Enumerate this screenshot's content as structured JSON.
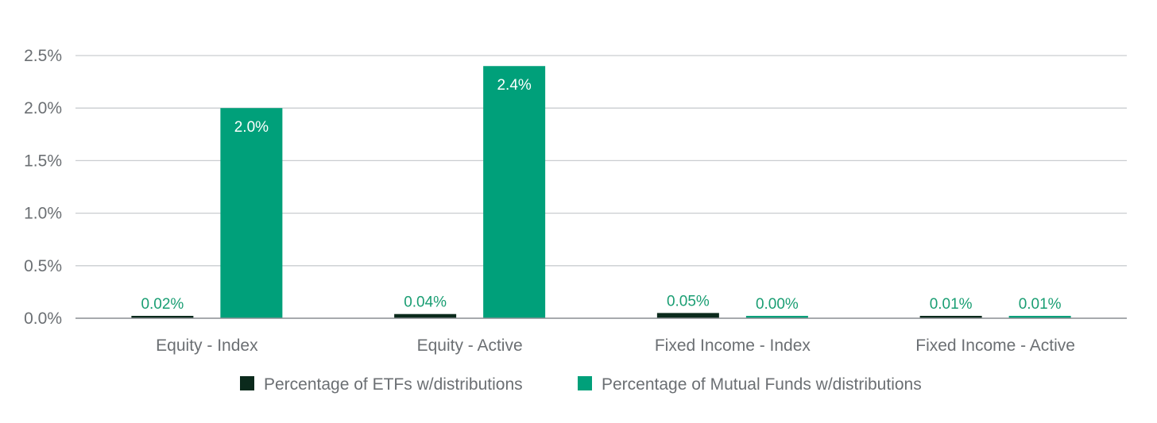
{
  "chart_data": {
    "type": "bar",
    "title": "",
    "xlabel": "",
    "ylabel": "",
    "categories": [
      "Equity - Index",
      "Equity - Active",
      "Fixed Income - Index",
      "Fixed Income - Active"
    ],
    "ylim": [
      0,
      2.5
    ],
    "yticks": [
      0.0,
      0.5,
      1.0,
      1.5,
      2.0,
      2.5
    ],
    "ytick_labels": [
      "0.0%",
      "0.5%",
      "1.0%",
      "1.5%",
      "2.0%",
      "2.5%"
    ],
    "grid": true,
    "legend_position": "bottom",
    "series": [
      {
        "name": "Percentage of ETFs w/distributions",
        "color": "#0b2a1c",
        "values": [
          0.02,
          0.04,
          0.05,
          0.01
        ],
        "labels": [
          "0.02%",
          "0.04%",
          "0.05%",
          "0.01%"
        ],
        "label_position": "above",
        "label_color": "#1a9e73"
      },
      {
        "name": "Percentage of Mutual Funds w/distributions",
        "color": "#00a07a",
        "values": [
          2.0,
          2.4,
          0.0,
          0.01
        ],
        "labels": [
          "2.0%",
          "2.4%",
          "0.00%",
          "0.01%"
        ],
        "label_position": "inside_if_tall",
        "label_color": "#1a9e73",
        "inside_label_color": "#ffffff"
      }
    ]
  }
}
